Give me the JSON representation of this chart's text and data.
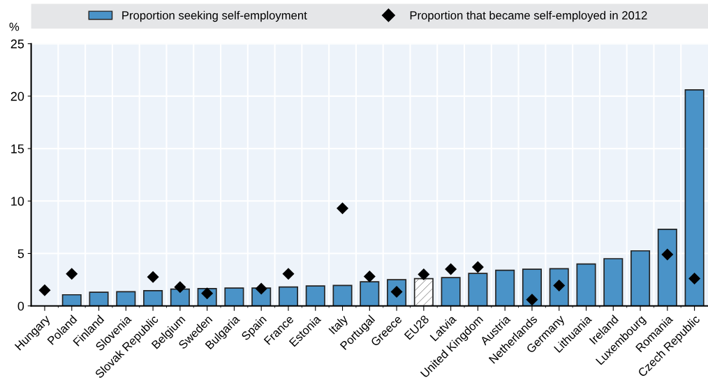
{
  "chart_data": {
    "type": "bar",
    "ylabel": "%",
    "categories": [
      "Hungary",
      "Poland",
      "Finland",
      "Slovenia",
      "Slovak Republic",
      "Belgium",
      "Sweden",
      "Bulgaria",
      "Spain",
      "France",
      "Estonia",
      "Italy",
      "Portugal",
      "Greece",
      "EU28",
      "Latvia",
      "United Kingdom",
      "Austria",
      "Netherlands",
      "Germany",
      "Lithuania",
      "Ireland",
      "Luxembourg",
      "Romania",
      "Czech Republic"
    ],
    "series": [
      {
        "name": "Proportion seeking self-employment",
        "color": "#4a93c8",
        "colors": [
          "#4a93c8",
          "#4a93c8",
          "#4a93c8",
          "#4a93c8",
          "#4a93c8",
          "#4a93c8",
          "#4a93c8",
          "#4a93c8",
          "#4a93c8",
          "#4a93c8",
          "#4a93c8",
          "#4a93c8",
          "#4a93c8",
          "#4a93c8",
          "#ffffff",
          "#4a93c8",
          "#4a93c8",
          "#4a93c8",
          "#4a93c8",
          "#4a93c8",
          "#4a93c8",
          "#4a93c8",
          "#4a93c8",
          "#4a93c8",
          "#4a93c8"
        ],
        "values": [
          null,
          1.06,
          1.3,
          1.35,
          1.45,
          1.6,
          1.65,
          1.7,
          1.7,
          1.8,
          1.9,
          1.95,
          2.3,
          2.5,
          2.6,
          2.7,
          3.1,
          3.4,
          3.5,
          3.55,
          4.0,
          4.5,
          5.25,
          7.3,
          20.6
        ]
      },
      {
        "name": "Proportion that became self-employed in 2012",
        "type": "scatter",
        "color": "#000000",
        "marker": "diamond",
        "values": [
          1.5,
          3.05,
          null,
          null,
          2.75,
          1.8,
          1.2,
          null,
          1.65,
          3.05,
          null,
          9.3,
          2.8,
          1.35,
          3.0,
          3.5,
          3.7,
          null,
          0.6,
          1.95,
          null,
          null,
          null,
          4.9,
          2.6
        ]
      }
    ],
    "ylim": [
      0,
      25
    ],
    "yticks": [
      0,
      5,
      10,
      15,
      20,
      25
    ],
    "grid": true,
    "legend": "top"
  }
}
